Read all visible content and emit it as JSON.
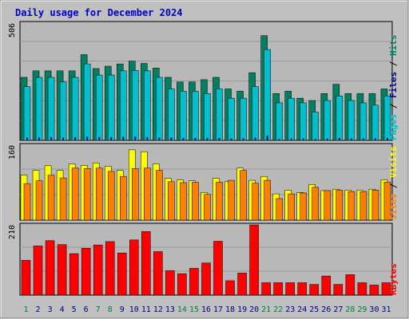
{
  "colors": {
    "frame_bg": "#c0c0c0",
    "plot_bg": "#b8b8b8",
    "title": "#0000c0",
    "hits": "#00c0d0",
    "files": "#008060",
    "pages": "#00c0d0",
    "visits": "#ffff00",
    "sites": "#ff8000",
    "kbytes": "#ff0000",
    "day_weekend": "#008040",
    "day_weekday": "#000080"
  },
  "chart_data": [
    {
      "type": "bar",
      "title": "Daily usage for December 2024",
      "ymax_label": "506",
      "legend": [
        "Pages",
        "Files",
        "Hits"
      ],
      "legend_sep": "/",
      "x": [
        1,
        2,
        3,
        4,
        5,
        6,
        7,
        8,
        9,
        10,
        11,
        12,
        13,
        14,
        15,
        16,
        17,
        18,
        19,
        20,
        21,
        22,
        23,
        24,
        25,
        26,
        27,
        28,
        29,
        30,
        31
      ],
      "ylim": [
        0,
        506
      ],
      "series": [
        {
          "name": "Hits",
          "values": [
            272,
            300,
            300,
            300,
            300,
            370,
            310,
            320,
            330,
            342,
            332,
            312,
            272,
            252,
            252,
            262,
            272,
            222,
            212,
            292,
            452,
            202,
            212,
            182,
            172,
            202,
            242,
            202,
            202,
            202,
            222
          ]
        },
        {
          "name": "Files",
          "values": [
            232,
            272,
            272,
            252,
            272,
            330,
            282,
            282,
            300,
            302,
            300,
            272,
            222,
            212,
            212,
            202,
            222,
            182,
            182,
            232,
            392,
            162,
            182,
            162,
            122,
            172,
            192,
            172,
            162,
            152,
            192
          ]
        },
        {
          "name": "Pages",
          "values": [
            12,
            12,
            14,
            12,
            14,
            16,
            14,
            14,
            16,
            16,
            14,
            12,
            12,
            10,
            10,
            10,
            10,
            8,
            8,
            12,
            20,
            6,
            8,
            8,
            6,
            8,
            10,
            8,
            8,
            8,
            10
          ]
        }
      ]
    },
    {
      "type": "bar",
      "ymax_label": "160",
      "legend": [
        "Sites",
        "Visits"
      ],
      "legend_sep": "/",
      "x": [
        1,
        2,
        3,
        4,
        5,
        6,
        7,
        8,
        9,
        10,
        11,
        12,
        13,
        14,
        15,
        16,
        17,
        18,
        19,
        20,
        21,
        22,
        23,
        24,
        25,
        26,
        27,
        28,
        29,
        30,
        31
      ],
      "ylim": [
        0,
        160
      ],
      "series": [
        {
          "name": "Visits",
          "values": [
            96,
            106,
            116,
            106,
            120,
            117,
            122,
            115,
            106,
            150,
            146,
            120,
            89,
            86,
            84,
            59,
            89,
            82,
            111,
            85,
            93,
            56,
            64,
            59,
            76,
            63,
            66,
            64,
            64,
            66,
            86
          ]
        },
        {
          "name": "Sites",
          "values": [
            78,
            84,
            96,
            90,
            111,
            110,
            111,
            104,
            93,
            110,
            111,
            106,
            82,
            80,
            81,
            55,
            81,
            85,
            106,
            79,
            85,
            46,
            56,
            58,
            70,
            63,
            64,
            61,
            61,
            64,
            81
          ]
        }
      ]
    },
    {
      "type": "bar",
      "ymax_label": "210",
      "legend": [
        "KBytes"
      ],
      "legend_sep": "",
      "x": [
        1,
        2,
        3,
        4,
        5,
        6,
        7,
        8,
        9,
        10,
        11,
        12,
        13,
        14,
        15,
        16,
        17,
        18,
        19,
        20,
        21,
        22,
        23,
        24,
        25,
        26,
        27,
        28,
        29,
        30,
        31
      ],
      "ylim": [
        0,
        210
      ],
      "series": [
        {
          "name": "KBytes",
          "values": [
            104,
            147,
            163,
            151,
            124,
            140,
            150,
            160,
            126,
            165,
            190,
            130,
            73,
            64,
            80,
            96,
            161,
            43,
            66,
            214,
            37,
            37,
            37,
            37,
            32,
            57,
            32,
            61,
            37,
            30,
            37
          ]
        }
      ]
    }
  ],
  "weekend_days": [
    1,
    7,
    8,
    14,
    15,
    21,
    22,
    28,
    29
  ]
}
